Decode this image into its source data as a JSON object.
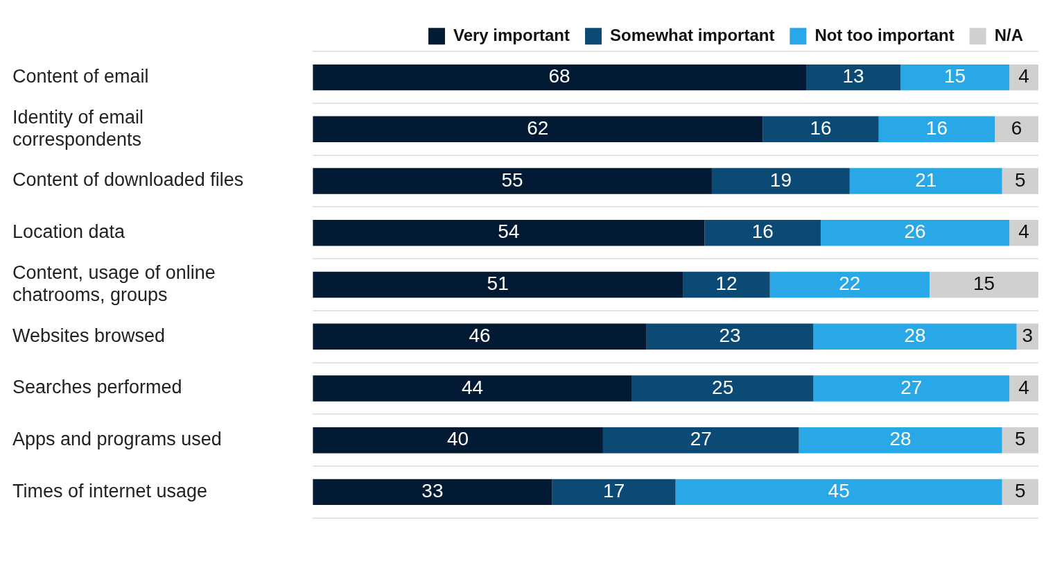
{
  "chart_data": {
    "type": "bar",
    "orientation": "horizontal",
    "stacked": true,
    "categories": [
      "Content of email",
      "Identity of email correspondents",
      "Content of downloaded files",
      "Location data",
      "Content, usage of online chatrooms, groups",
      "Websites browsed",
      "Searches performed",
      "Apps and programs used",
      "Times of internet usage"
    ],
    "series": [
      {
        "name": "Very important",
        "color": "#021a33",
        "values": [
          68,
          62,
          55,
          54,
          51,
          46,
          44,
          40,
          33
        ]
      },
      {
        "name": "Somewhat important",
        "color": "#0b4a75",
        "values": [
          13,
          16,
          19,
          16,
          12,
          23,
          25,
          27,
          17
        ]
      },
      {
        "name": "Not too important",
        "color": "#29a8e8",
        "values": [
          15,
          16,
          21,
          26,
          22,
          28,
          27,
          28,
          45
        ]
      },
      {
        "name": "N/A",
        "color": "#d0d0d0",
        "values": [
          4,
          6,
          5,
          4,
          15,
          3,
          4,
          5,
          5
        ]
      }
    ],
    "xlim": [
      0,
      100
    ],
    "tick_labels": "y",
    "grid": "y",
    "legend": "top",
    "data_labels": true
  }
}
